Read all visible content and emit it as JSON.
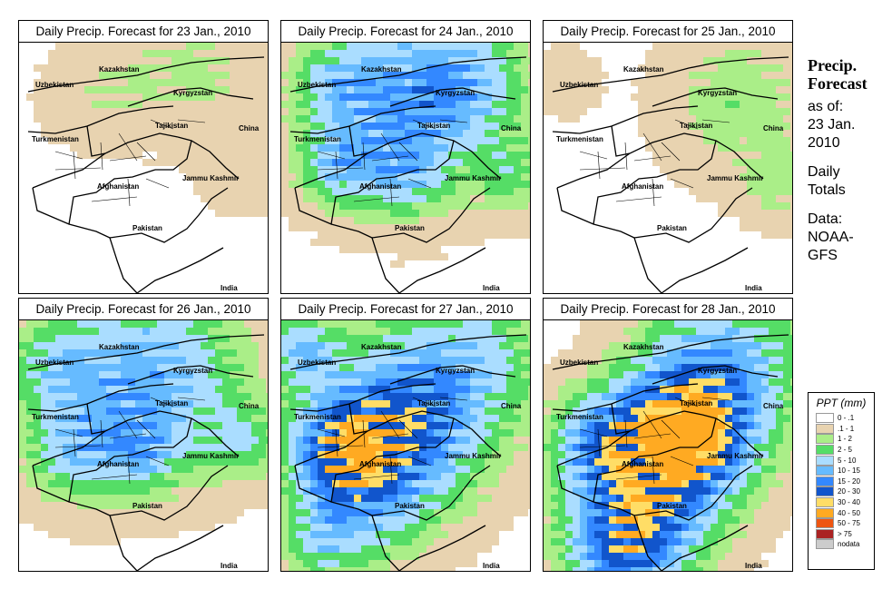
{
  "panels": [
    {
      "title": "Daily Precip. Forecast for  23 Jan., 2010",
      "level": 3
    },
    {
      "title": "Daily Precip. Forecast for  24 Jan., 2010",
      "level": 1
    },
    {
      "title": "Daily Precip. Forecast for  25 Jan., 2010",
      "level": 0
    },
    {
      "title": "Daily Precip. Forecast for  26 Jan., 2010",
      "level": 2
    },
    {
      "title": "Daily Precip. Forecast for  27 Jan., 2010",
      "level": 4
    },
    {
      "title": "Daily Precip. Forecast for  28 Jan., 2010",
      "level": 5
    }
  ],
  "map_labels": {
    "kazakhstan": "Kazakhstan",
    "uzbekistan": "Uzbekistan",
    "kyrgyzstan": "Kyrgyzstan",
    "tajikistan": "Tajikistan",
    "turkmenistan": "Turkmenistan",
    "china": "China",
    "afghanistan": "Afghanistan",
    "jammu_kashmir": "Jammu Kashmir",
    "pakistan": "Pakistan",
    "india": "India"
  },
  "side": {
    "title_line1": "Precip.",
    "title_line2": "Forecast",
    "asof_line1": "as of:",
    "asof_line2": "23 Jan.",
    "asof_line3": "2010",
    "totals_line1": "Daily",
    "totals_line2": "Totals",
    "data_line1": "Data:",
    "data_line2": "NOAA-",
    "data_line3": "GFS"
  },
  "legend": {
    "title": "PPT (mm)",
    "items": [
      {
        "label": "0 - .1",
        "color": "#ffffff"
      },
      {
        "label": ".1 - 1",
        "color": "#e8d3b0"
      },
      {
        "label": "1 - 2",
        "color": "#aaee88"
      },
      {
        "label": "2 - 5",
        "color": "#55dd66"
      },
      {
        "label": "5 - 10",
        "color": "#aaddff"
      },
      {
        "label": "10 - 15",
        "color": "#66bbff"
      },
      {
        "label": "15 - 20",
        "color": "#3388ff"
      },
      {
        "label": "20 - 30",
        "color": "#1155cc"
      },
      {
        "label": "30 - 40",
        "color": "#ffdd66"
      },
      {
        "label": "40 - 50",
        "color": "#ffaa22"
      },
      {
        "label": "50 - 75",
        "color": "#ee5511"
      },
      {
        "label": "> 75",
        "color": "#aa2222"
      },
      {
        "label": "nodata",
        "color": "#cccccc"
      }
    ]
  }
}
